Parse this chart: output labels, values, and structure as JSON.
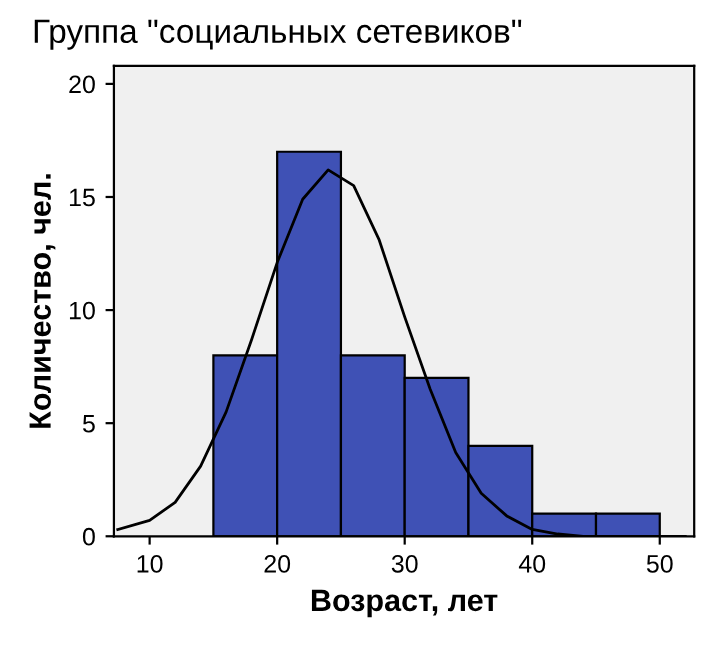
{
  "chart_data": {
    "type": "histogram",
    "title": "Группа \"социальных сетевиков\"",
    "xlabel": "Возраст, лет",
    "ylabel": "Количество, чел.",
    "bins": [
      15,
      20,
      25,
      30,
      35,
      40,
      45,
      50
    ],
    "series": [
      {
        "color": "#3f51b5",
        "values": [
          8,
          17,
          8,
          7,
          4,
          1,
          1
        ]
      },
      {
        "type": "line",
        "color": "#000000",
        "x": [
          7.5,
          10,
          12,
          14,
          16,
          18,
          20,
          22,
          24,
          26,
          28,
          30,
          32,
          34,
          36,
          38,
          40,
          42,
          44,
          46,
          48,
          50,
          52
        ],
        "values": [
          0.3,
          0.7,
          1.5,
          3.1,
          5.5,
          8.7,
          12.1,
          14.9,
          16.2,
          15.5,
          13.1,
          9.7,
          6.5,
          3.7,
          1.9,
          0.9,
          0.3,
          0.1,
          0,
          0,
          0,
          0,
          0
        ]
      }
    ],
    "xlim": [
      7.2,
      52.7
    ],
    "ylim": [
      0,
      20.8
    ],
    "xticks": [
      10,
      20,
      30,
      40,
      50
    ],
    "yticks": [
      0,
      5,
      10,
      15,
      20
    ],
    "grid": false,
    "legend": false,
    "marker": "none",
    "line_style": "solid"
  }
}
